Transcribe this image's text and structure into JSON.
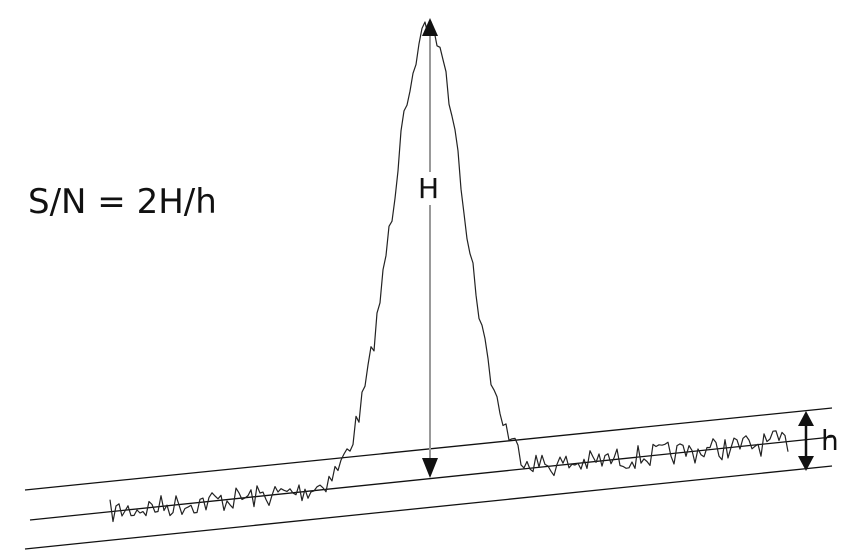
{
  "formula": "S/N = 2H/h",
  "peak_height_label": "H",
  "noise_band_label": "h",
  "colors": {
    "trace": "#222222",
    "baseline": "#111111",
    "height_arrow": "#999999",
    "arrowhead": "#111111"
  }
}
